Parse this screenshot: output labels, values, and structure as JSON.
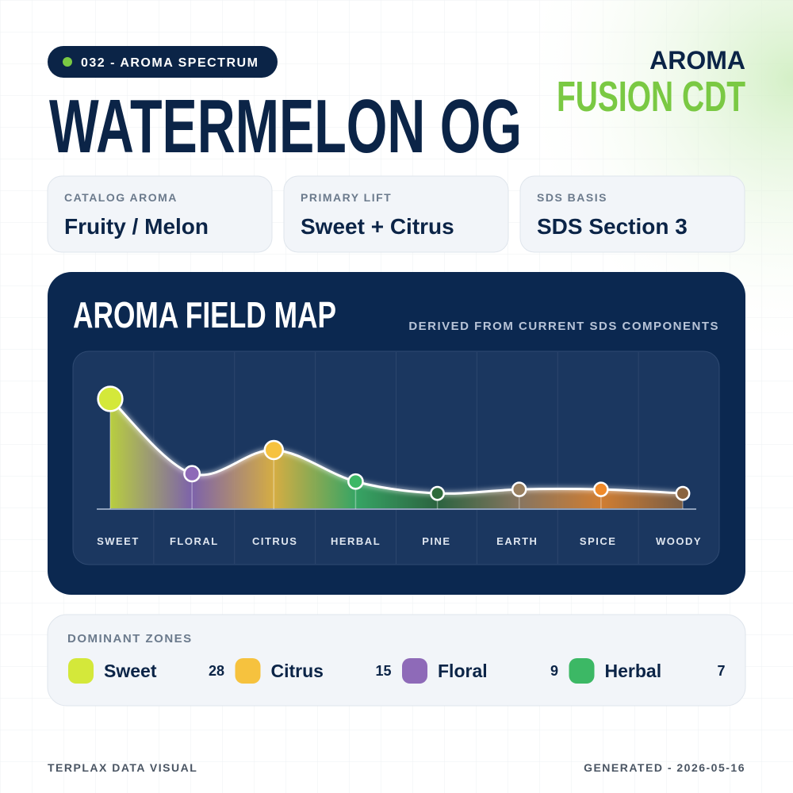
{
  "badge": "032 - AROMA SPECTRUM",
  "title": "WATERMELON OG",
  "brand": {
    "line1": "AROMA",
    "line2": "FUSION CDT"
  },
  "cards": [
    {
      "label": "CATALOG AROMA",
      "value": "Fruity / Melon"
    },
    {
      "label": "PRIMARY LIFT",
      "value": "Sweet + Citrus"
    },
    {
      "label": "SDS BASIS",
      "value": "SDS Section 3"
    }
  ],
  "chart_data": {
    "type": "area",
    "title": "AROMA FIELD MAP",
    "subtitle": "DERIVED FROM CURRENT SDS COMPONENTS",
    "categories": [
      "SWEET",
      "FLORAL",
      "CITRUS",
      "HERBAL",
      "PINE",
      "EARTH",
      "SPICE",
      "WOODY"
    ],
    "values": [
      28,
      9,
      15,
      7,
      4,
      5,
      5,
      4
    ],
    "colors": [
      "#d4e83a",
      "#8e6ab8",
      "#f6c23e",
      "#3cb865",
      "#2e6b3a",
      "#9a8060",
      "#f08a2a",
      "#8a6440"
    ]
  },
  "dominant_zones": {
    "title": "DOMINANT ZONES",
    "items": [
      {
        "name": "Sweet",
        "value": 28,
        "color": "#d4e83a"
      },
      {
        "name": "Citrus",
        "value": 15,
        "color": "#f6c23e"
      },
      {
        "name": "Floral",
        "value": 9,
        "color": "#8e6ab8"
      },
      {
        "name": "Herbal",
        "value": 7,
        "color": "#3cb865"
      }
    ]
  },
  "footer": {
    "left": "TERPLAX DATA VISUAL",
    "right": "GENERATED - 2026-05-16"
  }
}
